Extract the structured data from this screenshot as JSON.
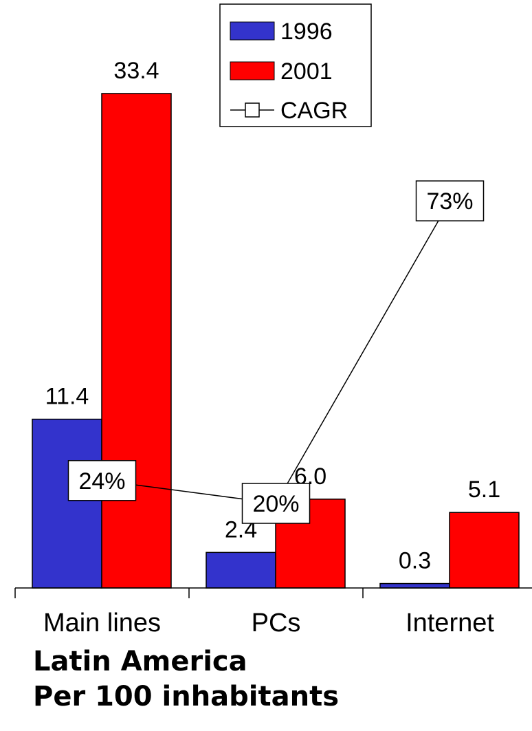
{
  "chart_data": {
    "type": "bar",
    "categories": [
      "Main lines",
      "PCs",
      "Internet"
    ],
    "series": [
      {
        "name": "1996",
        "values": [
          11.4,
          2.4,
          0.3
        ],
        "color": "#3333cc"
      },
      {
        "name": "2001",
        "values": [
          33.4,
          6.0,
          5.1
        ],
        "color": "#ff0000"
      }
    ],
    "value_labels": [
      [
        "11.4",
        "2.4",
        "0.3"
      ],
      [
        "33.4",
        "6.0",
        "5.1"
      ]
    ],
    "cagr": {
      "name": "CAGR",
      "values": [
        24,
        20,
        73
      ],
      "labels": [
        "24%",
        "20%",
        "73%"
      ]
    },
    "ylim": [
      0,
      36
    ],
    "grid": false,
    "legend": "top-center",
    "legend_items": [
      "1996",
      "2001",
      "CAGR"
    ]
  },
  "footer": {
    "line1": "Latin America",
    "line2": "Per 100 inhabitants"
  }
}
